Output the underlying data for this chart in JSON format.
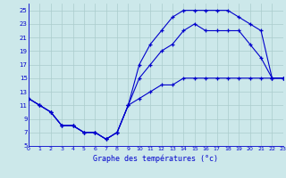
{
  "title": "Graphe des températures (°c)",
  "bg_color": "#cce8ea",
  "grid_color": "#aacccc",
  "line_color": "#0000cc",
  "hours": [
    0,
    1,
    2,
    3,
    4,
    5,
    6,
    7,
    8,
    9,
    10,
    11,
    12,
    13,
    14,
    15,
    16,
    17,
    18,
    19,
    20,
    21,
    22,
    23
  ],
  "line1": [
    12,
    11,
    10,
    8,
    8,
    7,
    7,
    6,
    7,
    11,
    12,
    13,
    14,
    14,
    15,
    15,
    15,
    15,
    15,
    15,
    15,
    15,
    15,
    15
  ],
  "line2": [
    12,
    11,
    10,
    8,
    8,
    7,
    7,
    6,
    7,
    11,
    15,
    17,
    19,
    20,
    22,
    23,
    22,
    22,
    22,
    22,
    20,
    18,
    15,
    15
  ],
  "line3": [
    12,
    11,
    10,
    8,
    8,
    7,
    7,
    6,
    7,
    11,
    17,
    20,
    22,
    24,
    25,
    25,
    25,
    25,
    25,
    24,
    23,
    22,
    15,
    15
  ],
  "xlim": [
    0,
    23
  ],
  "ylim": [
    5,
    26
  ],
  "yticks": [
    5,
    7,
    9,
    11,
    13,
    15,
    17,
    19,
    21,
    23,
    25
  ],
  "xticks": [
    0,
    1,
    2,
    3,
    4,
    5,
    6,
    7,
    8,
    9,
    10,
    11,
    12,
    13,
    14,
    15,
    16,
    17,
    18,
    19,
    20,
    21,
    22,
    23
  ]
}
